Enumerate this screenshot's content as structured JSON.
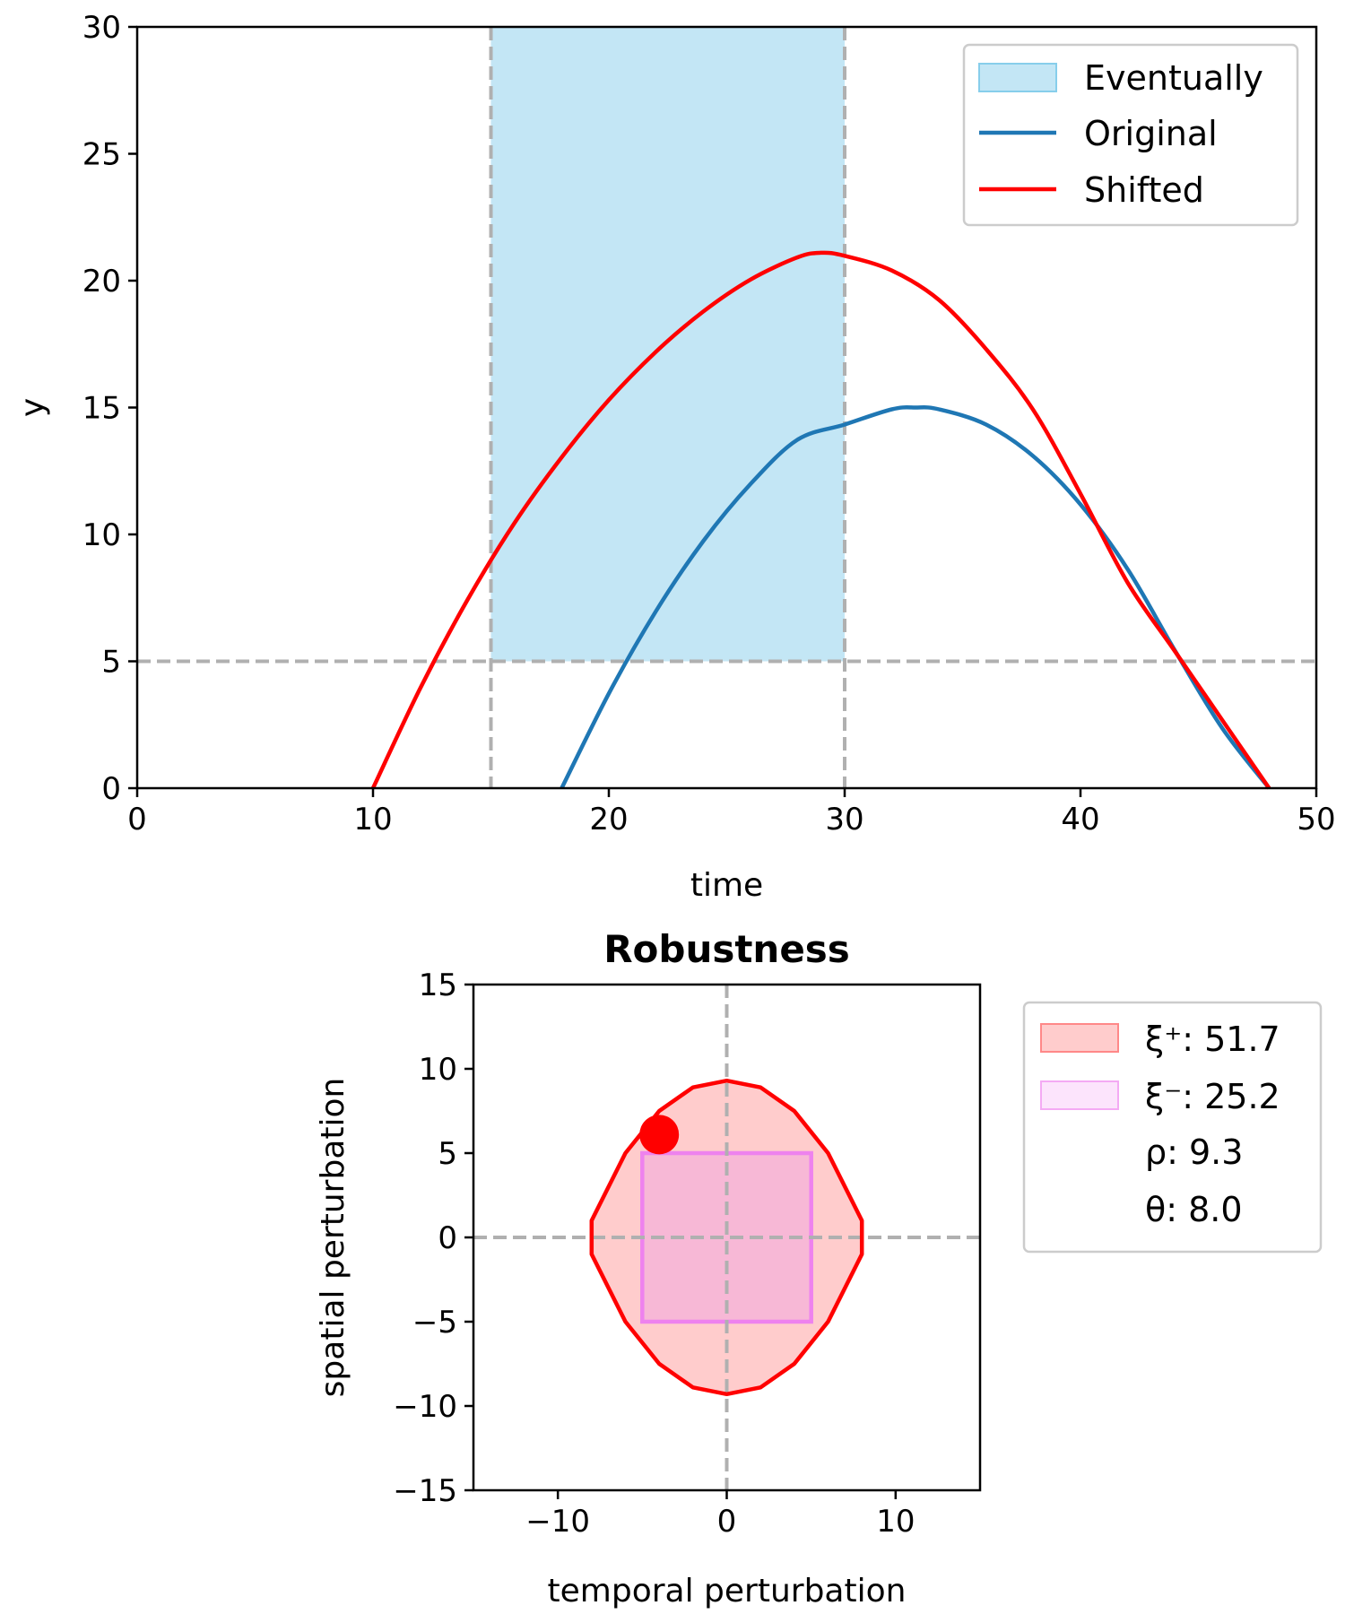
{
  "chart_data": [
    {
      "type": "line",
      "xlabel": "time",
      "ylabel": "y",
      "xlim": [
        0,
        50
      ],
      "ylim": [
        0,
        30
      ],
      "xticks": [
        "0",
        "10",
        "20",
        "30",
        "40",
        "50"
      ],
      "yticks": [
        "0",
        "5",
        "10",
        "15",
        "20",
        "25",
        "30"
      ],
      "grid": false,
      "legend_position": "top-right",
      "legend": [
        "Eventually",
        "Original",
        "Shifted"
      ],
      "shaded_region": {
        "name": "Eventually",
        "x": [
          15,
          30
        ],
        "y": [
          5,
          30
        ],
        "color": "#87CEEB"
      },
      "reference_lines": {
        "vertical_x": [
          15,
          30
        ],
        "horizontal_y": [
          5
        ],
        "color": "#b0b0b0",
        "style": "dashed"
      },
      "series": [
        {
          "name": "Original",
          "color": "#1f77b4",
          "x": [
            18,
            20,
            22,
            24,
            26,
            28,
            30,
            32,
            33,
            34,
            36,
            38,
            40,
            42,
            44,
            46,
            48
          ],
          "y": [
            0,
            3.73,
            6.98,
            9.73,
            11.98,
            13.73,
            14.33,
            14.93,
            15.0,
            14.93,
            14.33,
            13.08,
            11.18,
            8.63,
            5.43,
            2.38,
            0
          ]
        },
        {
          "name": "Shifted",
          "color": "#ff0000",
          "x": [
            10,
            12,
            14,
            16,
            18,
            20,
            22,
            24,
            26,
            28,
            29,
            30,
            32,
            34,
            36,
            38,
            40,
            42,
            44,
            46,
            48
          ],
          "y": [
            0,
            3.93,
            7.41,
            10.45,
            13.04,
            15.3,
            17.2,
            18.78,
            20.04,
            20.92,
            21.1,
            20.98,
            20.4,
            19.24,
            17.3,
            14.9,
            11.6,
            8.1,
            5.4,
            2.7,
            0
          ]
        }
      ]
    },
    {
      "type": "area",
      "title": "Robustness",
      "xlabel": "temporal perturbation",
      "ylabel": "spatial perturbation",
      "xlim": [
        -15,
        15
      ],
      "ylim": [
        -15,
        15
      ],
      "xticks": [
        "−10",
        "0",
        "10"
      ],
      "yticks": [
        "−15",
        "−10",
        "−5",
        "0",
        "5",
        "10",
        "15"
      ],
      "grid": false,
      "legend_position": "outside-right",
      "reference_lines": {
        "vertical_x": [
          0
        ],
        "horizontal_y": [
          0
        ],
        "color": "#b0b0b0",
        "style": "dashed"
      },
      "regions": [
        {
          "name": "ξ⁺",
          "value": "51.7",
          "edge_color": "#ff0000",
          "fill_color": "#ffcccc",
          "outline": [
            [
              0,
              9.3
            ],
            [
              2,
              8.9
            ],
            [
              4,
              7.5
            ],
            [
              6,
              5.0
            ],
            [
              8,
              1.0
            ],
            [
              8,
              -1.0
            ],
            [
              6,
              -5.0
            ],
            [
              4,
              -7.5
            ],
            [
              2,
              -8.9
            ],
            [
              0,
              -9.3
            ],
            [
              -2,
              -8.9
            ],
            [
              -4,
              -7.5
            ],
            [
              -6,
              -5.0
            ],
            [
              -8,
              -1.0
            ],
            [
              -8,
              1.0
            ],
            [
              -6,
              5.0
            ],
            [
              -4,
              7.5
            ],
            [
              -2,
              8.9
            ]
          ]
        },
        {
          "name": "ξ⁻",
          "value": "25.2",
          "edge_color": "#ee82ee",
          "fill_color": "#f5b3d8",
          "outline": [
            [
              -5,
              5
            ],
            [
              5,
              5
            ],
            [
              5,
              -5
            ],
            [
              -5,
              -5
            ]
          ]
        }
      ],
      "points": [
        {
          "x": -4,
          "y": 6.1,
          "color": "#ff0000"
        }
      ],
      "legend_entries": [
        {
          "symbol": "ξ⁺",
          "label": "ξ⁺: 51.7",
          "swatch": "#ffcccc",
          "swatch_edge": "#ff8888"
        },
        {
          "symbol": "ξ⁻",
          "label": "ξ⁻: 25.2",
          "swatch": "#fce4fc",
          "swatch_edge": "#f4aaf4"
        },
        {
          "symbol": "ρ",
          "label": "ρ: 9.3",
          "swatch": null
        },
        {
          "symbol": "θ",
          "label": "θ: 8.0",
          "swatch": null
        }
      ]
    }
  ]
}
